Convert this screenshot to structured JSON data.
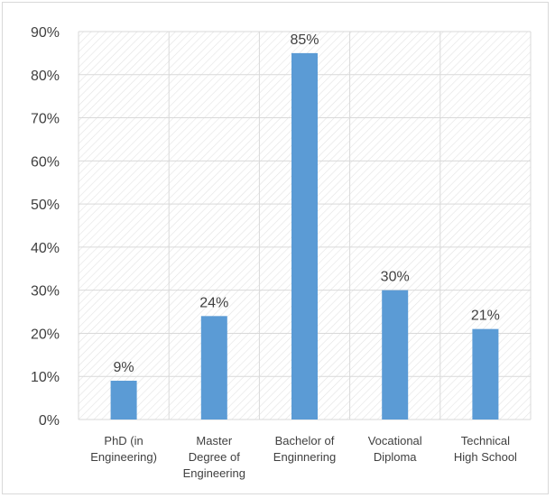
{
  "chart_data": {
    "type": "bar",
    "title": "",
    "xlabel": "",
    "ylabel": "",
    "categories": [
      [
        "PhD (in",
        "Engineering)"
      ],
      [
        "Master",
        "Degree of",
        "Engineering"
      ],
      [
        "Bachelor of",
        "Enginnering"
      ],
      [
        "Vocational",
        "Diploma"
      ],
      [
        "Technical",
        "High School"
      ]
    ],
    "values": [
      9,
      24,
      85,
      30,
      21
    ],
    "data_labels": [
      "9%",
      "24%",
      "85%",
      "30%",
      "21%"
    ],
    "ylim": [
      0,
      90
    ],
    "yticks": [
      {
        "value": 0,
        "label": "0%"
      },
      {
        "value": 10,
        "label": "10%"
      },
      {
        "value": 20,
        "label": "20%"
      },
      {
        "value": 30,
        "label": "30%"
      },
      {
        "value": 40,
        "label": "40%"
      },
      {
        "value": 50,
        "label": "50%"
      },
      {
        "value": 60,
        "label": "60%"
      },
      {
        "value": 70,
        "label": "70%"
      },
      {
        "value": 80,
        "label": "80%"
      },
      {
        "value": 90,
        "label": "90%"
      }
    ],
    "grid": true,
    "plot_background": "diagonal hatch",
    "colors": {
      "bar": "#5b9bd5",
      "grid": "#d9d9d9",
      "hatch": "#e3e3e3",
      "text": "#404040"
    }
  }
}
